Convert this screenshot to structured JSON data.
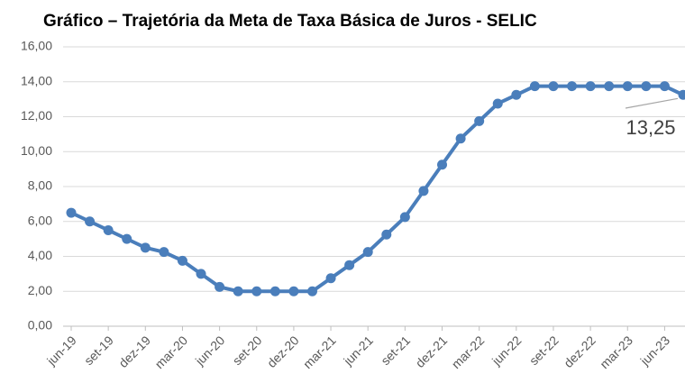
{
  "chart_data": {
    "type": "line",
    "title": "Gráfico – Trajetória da Meta de Taxa Básica de Juros - SELIC",
    "categories": [
      "jun-19",
      null,
      "set-19",
      null,
      "dez-19",
      null,
      "mar-20",
      null,
      "jun-20",
      null,
      "set-20",
      null,
      "dez-20",
      null,
      "mar-21",
      null,
      "jun-21",
      null,
      "set-21",
      null,
      "dez-21",
      null,
      "mar-22",
      null,
      "jun-22",
      null,
      "set-22",
      null,
      "dez-22",
      null,
      "mar-23",
      null,
      "jun-23",
      null
    ],
    "series": [
      {
        "name": "SELIC",
        "color": "#4a7ebb",
        "values": [
          6.5,
          6.0,
          5.5,
          5.0,
          4.5,
          4.25,
          3.75,
          3.0,
          2.25,
          2.0,
          2.0,
          2.0,
          2.0,
          2.0,
          2.75,
          3.5,
          4.25,
          5.25,
          6.25,
          7.75,
          9.25,
          10.75,
          11.75,
          12.75,
          13.25,
          13.75,
          13.75,
          13.75,
          13.75,
          13.75,
          13.75,
          13.75,
          13.75,
          13.25
        ],
        "value_labels": [
          null,
          null,
          null,
          null,
          null,
          null,
          null,
          null,
          null,
          null,
          null,
          null,
          null,
          null,
          null,
          null,
          null,
          null,
          null,
          null,
          null,
          null,
          null,
          null,
          null,
          null,
          null,
          null,
          null,
          null,
          null,
          null,
          null,
          "13,25"
        ]
      }
    ],
    "ylim": [
      0,
      16
    ],
    "yticks": [
      {
        "value": 0,
        "label": "0,00"
      },
      {
        "value": 2,
        "label": "2,00"
      },
      {
        "value": 4,
        "label": "4,00"
      },
      {
        "value": 6,
        "label": "6,00"
      },
      {
        "value": 8,
        "label": "8,00"
      },
      {
        "value": 10,
        "label": "10,00"
      },
      {
        "value": 12,
        "label": "12,00"
      },
      {
        "value": 14,
        "label": "14,00"
      },
      {
        "value": 16,
        "label": "16,00"
      }
    ],
    "grid": true
  }
}
